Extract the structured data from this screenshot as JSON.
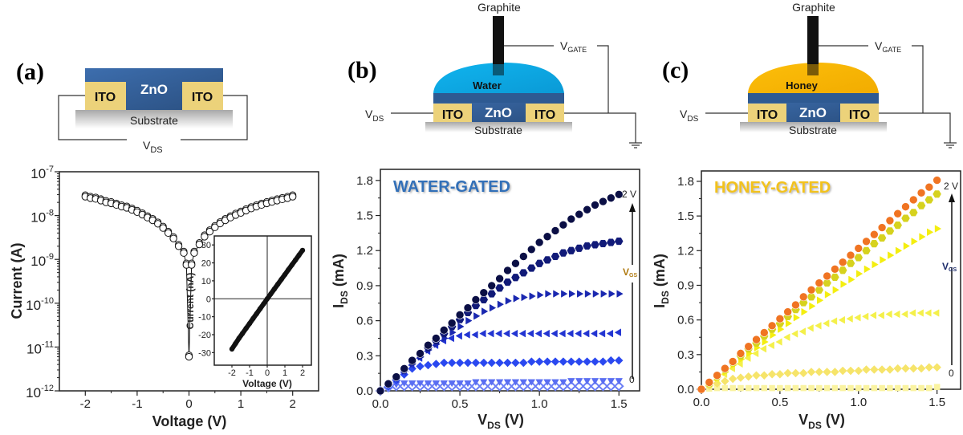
{
  "colors": {
    "zno": "#3a6aa8",
    "ito": "#ecd27a",
    "water": "#1ab0ea",
    "honey": "#fbbc0a",
    "graphite": "#111111",
    "water_title": "#3070b8",
    "honey_title": "#f2c21e"
  },
  "panels": {
    "a": {
      "label": "(a)",
      "diagram": {
        "zno": "ZnO",
        "ito_left": "ITO",
        "ito_right": "ITO",
        "substrate": "Substrate",
        "vds": {
          "main": "V",
          "sub": "DS"
        }
      }
    },
    "b": {
      "label": "(b)",
      "diagram": {
        "graphite": "Graphite",
        "electrolyte": "Water",
        "zno": "ZnO",
        "ito_left": "ITO",
        "ito_right": "ITO",
        "substrate": "Substrate",
        "vds": {
          "main": "V",
          "sub": "DS"
        },
        "vgate": {
          "main": "V",
          "sub": "GATE"
        }
      }
    },
    "c": {
      "label": "(c)",
      "diagram": {
        "graphite": "Graphite",
        "electrolyte": "Honey",
        "zno": "ZnO",
        "ito_left": "ITO",
        "ito_right": "ITO",
        "substrate": "Substrate",
        "vds": {
          "main": "V",
          "sub": "DS"
        },
        "vgate": {
          "main": "V",
          "sub": "GATE"
        }
      }
    }
  },
  "chart_data": [
    {
      "id": "a-main",
      "type": "scatter",
      "yscale": "log",
      "xlabel": "Voltage (V)",
      "ylabel": "Current (A)",
      "xlim": [
        -2.5,
        2.5
      ],
      "ylim": [
        1e-12,
        1e-07
      ],
      "xticks": [
        -2,
        -1,
        0,
        1,
        2
      ],
      "yticks": [
        1e-12,
        1e-11,
        1e-10,
        1e-09,
        1e-08,
        1e-07
      ],
      "grid": false,
      "marker": "open-circle",
      "series": [
        {
          "x": [
            -2.0,
            -1.9,
            -1.8,
            -1.7,
            -1.6,
            -1.5,
            -1.4,
            -1.3,
            -1.2,
            -1.1,
            -1.0,
            -0.9,
            -0.8,
            -0.7,
            -0.6,
            -0.5,
            -0.4,
            -0.3,
            -0.2,
            -0.1,
            -0.05,
            0.0,
            0.05,
            0.1,
            0.2,
            0.3,
            0.4,
            0.5,
            0.6,
            0.7,
            0.8,
            0.9,
            1.0,
            1.1,
            1.2,
            1.3,
            1.4,
            1.5,
            1.6,
            1.7,
            1.8,
            1.9,
            2.0
          ],
          "y": [
            2.7e-08,
            2.5e-08,
            2.4e-08,
            2.2e-08,
            2e-08,
            1.9e-08,
            1.75e-08,
            1.6e-08,
            1.5e-08,
            1.35e-08,
            1.2e-08,
            1.05e-08,
            9e-09,
            7.8e-09,
            6.5e-09,
            5.2e-09,
            4e-09,
            3e-09,
            2e-09,
            1.4e-09,
            7.5e-10,
            6e-12,
            7.5e-10,
            1.4e-09,
            2.2e-09,
            3.3e-09,
            4.3e-09,
            5.4e-09,
            6.6e-09,
            7.8e-09,
            9e-09,
            1.03e-08,
            1.15e-08,
            1.3e-08,
            1.45e-08,
            1.6e-08,
            1.75e-08,
            1.9e-08,
            2.05e-08,
            2.2e-08,
            2.35e-08,
            2.5e-08,
            2.7e-08
          ]
        }
      ]
    },
    {
      "id": "a-inset",
      "type": "scatter",
      "xlabel": "Voltage (V)",
      "ylabel": "Current (nA)",
      "xlim": [
        -3,
        2.5
      ],
      "ylim": [
        -37,
        35
      ],
      "xticks": [
        -2,
        -1,
        0,
        1,
        2
      ],
      "yticks": [
        -30,
        -20,
        -10,
        0,
        10,
        20,
        30
      ],
      "grid": false,
      "series": [
        {
          "x": [
            -2.0,
            -1.8,
            -1.6,
            -1.4,
            -1.2,
            -1.0,
            -0.8,
            -0.6,
            -0.4,
            -0.2,
            0.0,
            0.2,
            0.4,
            0.6,
            0.8,
            1.0,
            1.2,
            1.4,
            1.6,
            1.8,
            2.0
          ],
          "y": [
            -28,
            -25,
            -22,
            -19.3,
            -16.5,
            -13.8,
            -11,
            -8.3,
            -5.5,
            -2.8,
            0,
            2.7,
            5.4,
            8.1,
            10.8,
            13.5,
            16.2,
            18.9,
            21.6,
            24.3,
            27
          ]
        }
      ]
    },
    {
      "id": "b",
      "type": "scatter",
      "title": "WATER-GATED",
      "xlabel": {
        "main": "V",
        "sub": "DS",
        "rest": " (V)"
      },
      "ylabel": {
        "main": "I",
        "sub": "DS",
        "rest": " (mA)"
      },
      "xlim": [
        0,
        1.63
      ],
      "ylim": [
        0,
        1.895
      ],
      "xticks": [
        0.0,
        0.5,
        1.0,
        1.5
      ],
      "yticks": [
        0.0,
        0.3,
        0.6,
        0.9,
        1.2,
        1.5,
        1.8
      ],
      "grid": false,
      "annotation": {
        "top": "2 V",
        "mid": {
          "main": "V",
          "sub": "GS"
        },
        "bottom": "0"
      },
      "x": [
        0,
        0.05,
        0.1,
        0.15,
        0.2,
        0.25,
        0.3,
        0.35,
        0.4,
        0.45,
        0.5,
        0.55,
        0.6,
        0.65,
        0.7,
        0.75,
        0.8,
        0.85,
        0.9,
        0.95,
        1.0,
        1.05,
        1.1,
        1.15,
        1.2,
        1.25,
        1.3,
        1.35,
        1.4,
        1.45,
        1.5
      ],
      "series": [
        {
          "marker": "circle",
          "color": "#0b0f45",
          "values": [
            0,
            0.06,
            0.12,
            0.19,
            0.26,
            0.32,
            0.39,
            0.45,
            0.52,
            0.58,
            0.65,
            0.71,
            0.78,
            0.84,
            0.9,
            0.96,
            1.03,
            1.09,
            1.15,
            1.21,
            1.27,
            1.32,
            1.37,
            1.42,
            1.47,
            1.51,
            1.55,
            1.59,
            1.62,
            1.65,
            1.68
          ]
        },
        {
          "marker": "hexagon",
          "color": "#111a78",
          "values": [
            0,
            0.06,
            0.12,
            0.18,
            0.25,
            0.31,
            0.37,
            0.43,
            0.49,
            0.55,
            0.61,
            0.67,
            0.73,
            0.78,
            0.83,
            0.88,
            0.93,
            0.97,
            1.01,
            1.05,
            1.09,
            1.12,
            1.15,
            1.18,
            1.2,
            1.22,
            1.24,
            1.25,
            1.26,
            1.27,
            1.28
          ]
        },
        {
          "marker": "triangle-right",
          "color": "#1a28b0",
          "values": [
            0,
            0.06,
            0.11,
            0.17,
            0.23,
            0.29,
            0.35,
            0.4,
            0.45,
            0.5,
            0.55,
            0.6,
            0.64,
            0.68,
            0.71,
            0.74,
            0.77,
            0.79,
            0.8,
            0.81,
            0.82,
            0.83,
            0.83,
            0.83,
            0.83,
            0.83,
            0.83,
            0.83,
            0.83,
            0.83,
            0.83
          ]
        },
        {
          "marker": "triangle-left",
          "color": "#2234d2",
          "values": [
            0,
            0.05,
            0.1,
            0.16,
            0.22,
            0.28,
            0.34,
            0.39,
            0.43,
            0.45,
            0.47,
            0.48,
            0.48,
            0.49,
            0.49,
            0.49,
            0.49,
            0.49,
            0.49,
            0.49,
            0.49,
            0.49,
            0.49,
            0.49,
            0.49,
            0.49,
            0.49,
            0.49,
            0.49,
            0.49,
            0.5
          ]
        },
        {
          "marker": "diamond",
          "color": "#2a48f0",
          "values": [
            0,
            0.04,
            0.09,
            0.14,
            0.19,
            0.21,
            0.22,
            0.23,
            0.24,
            0.24,
            0.24,
            0.24,
            0.24,
            0.24,
            0.24,
            0.24,
            0.24,
            0.24,
            0.24,
            0.25,
            0.25,
            0.25,
            0.25,
            0.25,
            0.25,
            0.25,
            0.25,
            0.25,
            0.25,
            0.26,
            0.26
          ]
        },
        {
          "marker": "triangle-down",
          "color": "#5a6ef2",
          "values": [
            0,
            0.04,
            0.06,
            0.07,
            0.07,
            0.07,
            0.07,
            0.07,
            0.07,
            0.07,
            0.07,
            0.07,
            0.08,
            0.08,
            0.08,
            0.08,
            0.08,
            0.08,
            0.08,
            0.08,
            0.08,
            0.08,
            0.08,
            0.08,
            0.09,
            0.09,
            0.09,
            0.09,
            0.09,
            0.09,
            0.09
          ]
        },
        {
          "marker": "diamond-open",
          "color": "#6a7ef5",
          "values": [
            0,
            0.03,
            0.04,
            0.04,
            0.04,
            0.04,
            0.04,
            0.04,
            0.04,
            0.04,
            0.04,
            0.04,
            0.04,
            0.04,
            0.04,
            0.04,
            0.04,
            0.04,
            0.04,
            0.04,
            0.04,
            0.04,
            0.04,
            0.04,
            0.04,
            0.04,
            0.04,
            0.04,
            0.04,
            0.04,
            0.04
          ]
        }
      ]
    },
    {
      "id": "c",
      "type": "scatter",
      "title": "HONEY-GATED",
      "xlabel": {
        "main": "V",
        "sub": "DS",
        "rest": " (V)"
      },
      "ylabel": {
        "main": "I",
        "sub": "DS",
        "rest": " (mA)"
      },
      "xlim": [
        0,
        1.65
      ],
      "ylim": [
        0,
        1.89
      ],
      "xticks": [
        0.0,
        0.5,
        1.0,
        1.5
      ],
      "yticks": [
        0.0,
        0.3,
        0.6,
        0.9,
        1.2,
        1.5,
        1.8
      ],
      "grid": false,
      "annotation": {
        "top": "2 V",
        "mid": {
          "main": "V",
          "sub": "GS"
        },
        "bottom": "0"
      },
      "x": [
        0,
        0.05,
        0.1,
        0.15,
        0.2,
        0.25,
        0.3,
        0.35,
        0.4,
        0.45,
        0.5,
        0.55,
        0.6,
        0.65,
        0.7,
        0.75,
        0.8,
        0.85,
        0.9,
        0.95,
        1.0,
        1.05,
        1.1,
        1.15,
        1.2,
        1.25,
        1.3,
        1.35,
        1.4,
        1.45,
        1.5
      ],
      "series": [
        {
          "marker": "circle",
          "color": "#f07422",
          "values": [
            0,
            0.06,
            0.12,
            0.18,
            0.24,
            0.31,
            0.37,
            0.43,
            0.49,
            0.55,
            0.61,
            0.67,
            0.73,
            0.8,
            0.86,
            0.92,
            0.98,
            1.04,
            1.1,
            1.16,
            1.22,
            1.28,
            1.34,
            1.4,
            1.46,
            1.52,
            1.58,
            1.64,
            1.7,
            1.75,
            1.81
          ]
        },
        {
          "marker": "hexagon",
          "color": "#d6d21e",
          "values": [
            0,
            0.05,
            0.11,
            0.17,
            0.23,
            0.29,
            0.35,
            0.4,
            0.46,
            0.52,
            0.57,
            0.63,
            0.69,
            0.75,
            0.8,
            0.86,
            0.92,
            0.97,
            1.03,
            1.09,
            1.14,
            1.2,
            1.26,
            1.31,
            1.37,
            1.42,
            1.48,
            1.53,
            1.59,
            1.64,
            1.69
          ]
        },
        {
          "marker": "triangle-right",
          "color": "#f4ee10",
          "values": [
            0,
            0.05,
            0.1,
            0.15,
            0.21,
            0.26,
            0.31,
            0.36,
            0.41,
            0.47,
            0.52,
            0.57,
            0.62,
            0.67,
            0.72,
            0.77,
            0.82,
            0.86,
            0.91,
            0.95,
            1.0,
            1.04,
            1.08,
            1.12,
            1.16,
            1.2,
            1.24,
            1.28,
            1.32,
            1.36,
            1.39
          ]
        },
        {
          "marker": "triangle-left",
          "color": "#f4f04a",
          "values": [
            0,
            0.04,
            0.08,
            0.13,
            0.18,
            0.22,
            0.27,
            0.31,
            0.35,
            0.38,
            0.41,
            0.45,
            0.48,
            0.5,
            0.53,
            0.55,
            0.57,
            0.59,
            0.6,
            0.61,
            0.62,
            0.63,
            0.64,
            0.64,
            0.65,
            0.65,
            0.65,
            0.66,
            0.66,
            0.66,
            0.66
          ]
        },
        {
          "marker": "diamond",
          "color": "#f6e46a",
          "values": [
            0,
            0.03,
            0.05,
            0.07,
            0.09,
            0.1,
            0.11,
            0.12,
            0.12,
            0.13,
            0.13,
            0.14,
            0.14,
            0.14,
            0.15,
            0.15,
            0.15,
            0.15,
            0.16,
            0.16,
            0.16,
            0.17,
            0.17,
            0.17,
            0.17,
            0.18,
            0.18,
            0.18,
            0.18,
            0.19,
            0.19
          ]
        },
        {
          "marker": "square",
          "color": "#faf3a0",
          "values": [
            0,
            0.005,
            0.01,
            0.01,
            0.01,
            0.01,
            0.01,
            0.01,
            0.01,
            0.01,
            0.01,
            0.01,
            0.01,
            0.01,
            0.01,
            0.01,
            0.01,
            0.01,
            0.01,
            0.01,
            0.01,
            0.01,
            0.01,
            0.01,
            0.01,
            0.01,
            0.01,
            0.01,
            0.01,
            0.01,
            0.02
          ]
        }
      ]
    }
  ]
}
